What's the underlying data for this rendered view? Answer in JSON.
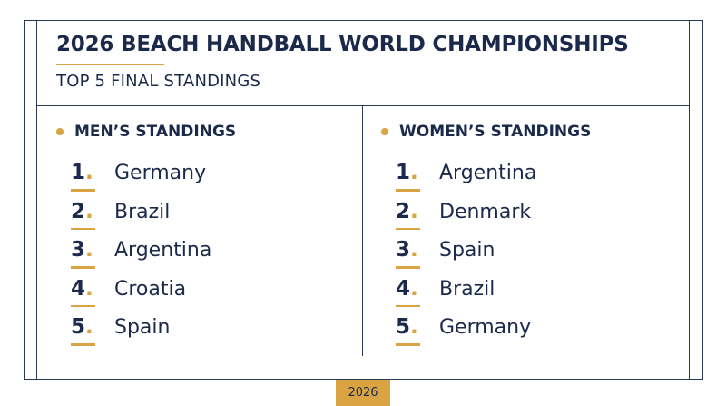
{
  "header": {
    "title": "2026 BEACH HANDBALL WORLD CHAMPIONSHIPS",
    "subtitle": "TOP 5 FINAL STANDINGS"
  },
  "men": {
    "heading": "MEN’S STANDINGS",
    "standings": [
      {
        "rank": "1",
        "team": "Germany"
      },
      {
        "rank": "2",
        "team": "Brazil"
      },
      {
        "rank": "3",
        "team": "Argentina"
      },
      {
        "rank": "4",
        "team": "Croatia"
      },
      {
        "rank": "5",
        "team": "Spain"
      }
    ]
  },
  "women": {
    "heading": "WOMEN’S STANDINGS",
    "standings": [
      {
        "rank": "1",
        "team": "Argentina"
      },
      {
        "rank": "2",
        "team": "Denmark"
      },
      {
        "rank": "3",
        "team": "Spain"
      },
      {
        "rank": "4",
        "team": "Brazil"
      },
      {
        "rank": "5",
        "team": "Germany"
      }
    ]
  },
  "footer": {
    "year_badge": "2026"
  },
  "colors": {
    "navy": "#1b2a4a",
    "gold": "#d9a441",
    "border": "#2a3a55"
  }
}
